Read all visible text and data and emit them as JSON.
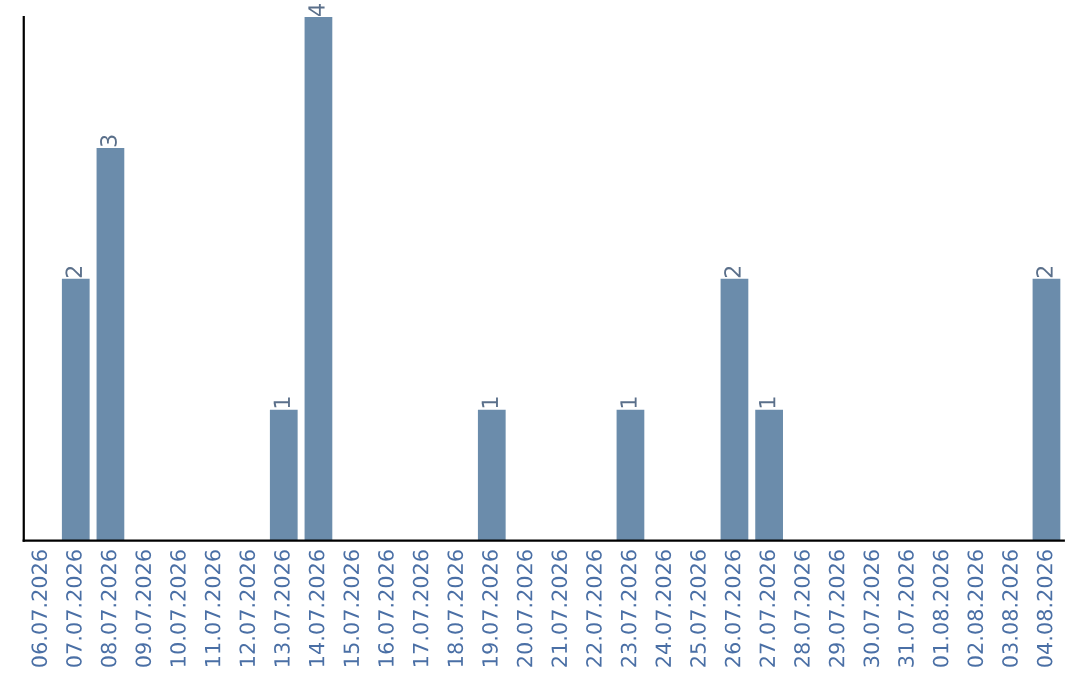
{
  "chart_data": {
    "type": "bar",
    "categories": [
      "06.07.2026",
      "07.07.2026",
      "08.07.2026",
      "09.07.2026",
      "10.07.2026",
      "11.07.2026",
      "12.07.2026",
      "13.07.2026",
      "14.07.2026",
      "15.07.2026",
      "16.07.2026",
      "17.07.2026",
      "18.07.2026",
      "19.07.2026",
      "20.07.2026",
      "21.07.2026",
      "22.07.2026",
      "23.07.2026",
      "24.07.2026",
      "25.07.2026",
      "26.07.2026",
      "27.07.2026",
      "28.07.2026",
      "29.07.2026",
      "30.07.2026",
      "31.07.2026",
      "01.08.2026",
      "02.08.2026",
      "03.08.2026",
      "04.08.2026"
    ],
    "values": [
      0,
      2,
      3,
      0,
      0,
      0,
      0,
      1,
      4,
      0,
      0,
      0,
      0,
      1,
      0,
      0,
      0,
      1,
      0,
      0,
      2,
      1,
      0,
      0,
      0,
      0,
      0,
      0,
      0,
      2
    ],
    "value_labels": [
      null,
      "2",
      "3",
      null,
      null,
      null,
      null,
      "1",
      "4",
      null,
      null,
      null,
      null,
      "1",
      null,
      null,
      null,
      "1",
      null,
      null,
      "2",
      "1",
      null,
      null,
      null,
      null,
      null,
      null,
      null,
      "2"
    ],
    "color": "#6b8cab",
    "tick_labels": "x",
    "grid": false
  }
}
